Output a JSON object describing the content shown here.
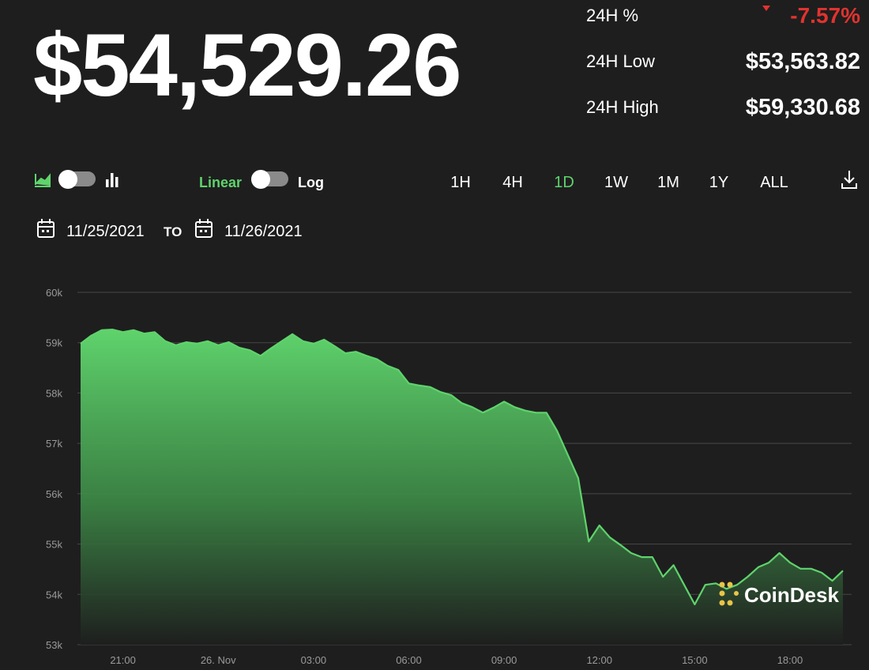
{
  "header": {
    "price": "$54,529.26",
    "stats": [
      {
        "label": "24H %",
        "value": "-7.57%"
      },
      {
        "label": "24H Low",
        "value": "$53,563.82"
      },
      {
        "label": "24H High",
        "value": "$59,330.68"
      }
    ]
  },
  "controls": {
    "scale_options": [
      "Linear",
      "Log"
    ],
    "active_scale": 0,
    "ranges": [
      "1H",
      "4H",
      "1D",
      "1W",
      "1M",
      "1Y",
      "ALL"
    ],
    "active_range": 2
  },
  "date_range": {
    "from": "11/25/2021",
    "separator": "TO",
    "to": "11/26/2021"
  },
  "watermark": "CoinDesk",
  "chart_data": {
    "type": "area",
    "color": "#5fd36c",
    "grid": true,
    "categories": [
      null,
      null,
      null,
      null,
      "21:00",
      null,
      null,
      null,
      null,
      null,
      null,
      null,
      null,
      "26. Nov",
      null,
      null,
      null,
      null,
      null,
      null,
      null,
      null,
      "03:00",
      null,
      null,
      null,
      null,
      null,
      null,
      null,
      null,
      "06:00",
      null,
      null,
      null,
      null,
      null,
      null,
      null,
      null,
      "09:00",
      null,
      null,
      null,
      null,
      null,
      null,
      null,
      null,
      "12:00",
      null,
      null,
      null,
      null,
      null,
      null,
      null,
      null,
      "15:00",
      null,
      null,
      null,
      null,
      null,
      null,
      null,
      null,
      "18:00",
      null,
      null,
      null,
      null,
      null
    ],
    "values": [
      58980,
      59140,
      59250,
      59260,
      59210,
      59250,
      59180,
      59210,
      59030,
      58950,
      59010,
      58980,
      59030,
      58950,
      59010,
      58900,
      58850,
      58740,
      58890,
      59030,
      59170,
      59030,
      58980,
      59060,
      58930,
      58790,
      58820,
      58740,
      58670,
      58540,
      58460,
      58190,
      58150,
      58120,
      58020,
      57960,
      57800,
      57720,
      57610,
      57710,
      57830,
      57720,
      57650,
      57610,
      57610,
      57250,
      56780,
      56310,
      55050,
      55370,
      55130,
      54980,
      54820,
      54740,
      54740,
      54350,
      54580,
      54190,
      53800,
      54190,
      54220,
      54110,
      54190,
      54350,
      54540,
      54630,
      54820,
      54630,
      54510,
      54510,
      54430,
      54270,
      54470
    ],
    "ylim": [
      53000,
      60000
    ],
    "yticks": [
      {
        "value": 53000,
        "label": "53k"
      },
      {
        "value": 54000,
        "label": "54k"
      },
      {
        "value": 55000,
        "label": "55k"
      },
      {
        "value": 56000,
        "label": "56k"
      },
      {
        "value": 57000,
        "label": "57k"
      },
      {
        "value": 58000,
        "label": "58k"
      },
      {
        "value": 59000,
        "label": "59k"
      },
      {
        "value": 60000,
        "label": "60k"
      }
    ]
  }
}
